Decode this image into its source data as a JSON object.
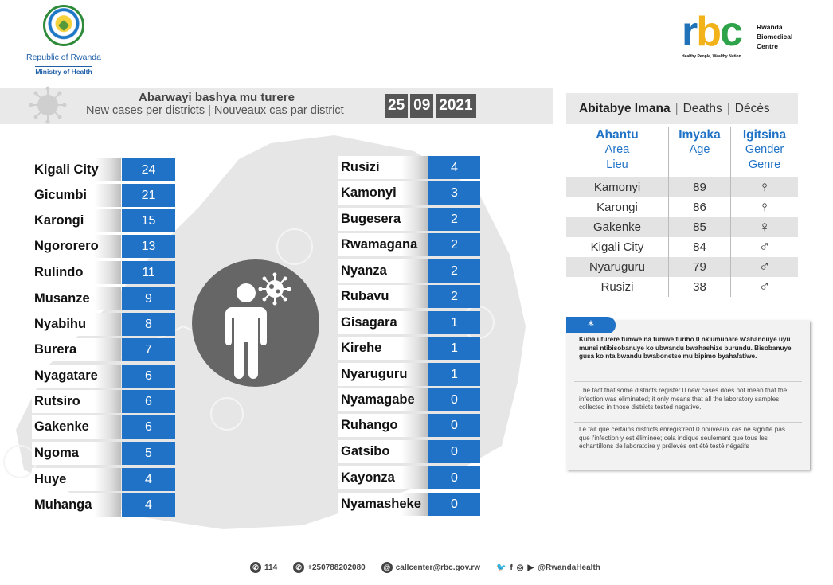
{
  "header": {
    "republic": "Republic of Rwanda",
    "ministry": "Ministry of Health",
    "rbc_letters": [
      "r",
      "b",
      "c"
    ],
    "rbc_name": [
      "Rwanda",
      "Biomedical",
      "Centre"
    ],
    "rbc_tagline": "Healthy People, Wealthy Nation"
  },
  "title": {
    "kinyarwanda": "Abarwayi bashya mu turere",
    "en_fr": "New cases per districts  |  Nouveaux cas par district",
    "date": [
      "25",
      "09",
      "2021"
    ]
  },
  "left_list": [
    {
      "district": "Kigali City",
      "cases": "24"
    },
    {
      "district": "Gicumbi",
      "cases": "21"
    },
    {
      "district": "Karongi",
      "cases": "15"
    },
    {
      "district": "Ngororero",
      "cases": "13"
    },
    {
      "district": "Rulindo",
      "cases": "11"
    },
    {
      "district": "Musanze",
      "cases": "9"
    },
    {
      "district": "Nyabihu",
      "cases": "8"
    },
    {
      "district": "Burera",
      "cases": "7"
    },
    {
      "district": "Nyagatare",
      "cases": "6"
    },
    {
      "district": "Rutsiro",
      "cases": "6"
    },
    {
      "district": "Gakenke",
      "cases": "6"
    },
    {
      "district": "Ngoma",
      "cases": "5"
    },
    {
      "district": "Huye",
      "cases": "4"
    },
    {
      "district": "Muhanga",
      "cases": "4"
    }
  ],
  "right_list": [
    {
      "district": "Rusizi",
      "cases": "4"
    },
    {
      "district": "Kamonyi",
      "cases": "3"
    },
    {
      "district": "Bugesera",
      "cases": "2"
    },
    {
      "district": "Rwamagana",
      "cases": "2"
    },
    {
      "district": "Nyanza",
      "cases": "2"
    },
    {
      "district": "Rubavu",
      "cases": "2"
    },
    {
      "district": "Gisagara",
      "cases": "1"
    },
    {
      "district": "Kirehe",
      "cases": "1"
    },
    {
      "district": "Nyaruguru",
      "cases": "1"
    },
    {
      "district": "Nyamagabe",
      "cases": "0"
    },
    {
      "district": "Ruhango",
      "cases": "0"
    },
    {
      "district": "Gatsibo",
      "cases": "0"
    },
    {
      "district": "Kayonza",
      "cases": "0"
    },
    {
      "district": "Nyamasheke",
      "cases": "0"
    }
  ],
  "deaths": {
    "title_rw": "Abitabye Imana",
    "title_en": "Deaths",
    "title_fr": "Décès",
    "columns": [
      {
        "head": "Ahantu",
        "sub1": "Area",
        "sub2": "Lieu"
      },
      {
        "head": "Imyaka",
        "sub1": "Age",
        "sub2": ""
      },
      {
        "head": "Igitsina",
        "sub1": "Gender",
        "sub2": "Genre"
      }
    ],
    "rows": [
      {
        "area": "Kamonyi",
        "age": "89",
        "gender": "♀"
      },
      {
        "area": "Karongi",
        "age": "86",
        "gender": "♀"
      },
      {
        "area": "Gakenke",
        "age": "85",
        "gender": "♀"
      },
      {
        "area": "Kigali City",
        "age": "84",
        "gender": "♂"
      },
      {
        "area": "Nyaruguru",
        "age": "79",
        "gender": "♂"
      },
      {
        "area": "Rusizi",
        "age": "38",
        "gender": "♂"
      }
    ]
  },
  "note": {
    "marker": "*",
    "rw": "Kuba uturere tumwe na tumwe turiho 0 nk'umubare w'abanduye uyu munsi ntibisobanuye ko ubwandu bwahashize burundu. Bisobanuye gusa ko nta bwandu bwabonetse mu bipimo byahafatiwe.",
    "en": "The fact that some districts register 0 new cases does not mean that the infection was eliminated; it only means that all the laboratory samples collected in those districts tested negative.",
    "fr": "Le fait que certains districts enregistrent 0 nouveaux cas ne signifie pas que l'infection y est éliminée; cela indique seulement que tous les échantillons de laboratoire y prélevés ont été testé négatifs"
  },
  "footer": {
    "hotline": "114",
    "phone": "+250788202080",
    "email": "callcenter@rbc.gov.rw",
    "social_icons": [
      "twitter-icon",
      "facebook-icon",
      "instagram-icon",
      "youtube-icon"
    ],
    "social_glyphs": [
      "🐦",
      "f",
      "◎",
      "▶"
    ],
    "handle": "@RwandaHealth"
  },
  "colors": {
    "accent_blue": "#1f72c6",
    "band_gray": "#e9e9e9",
    "date_box": "#555555"
  }
}
